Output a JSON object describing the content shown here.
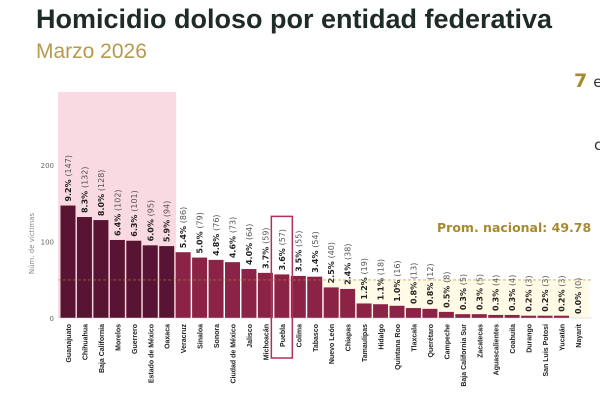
{
  "title": "Homicidio doloso por entidad federativa",
  "subtitle": "Marzo 2026",
  "side_text": {
    "number": "7",
    "text": "en",
    "fragment": "c"
  },
  "colors": {
    "top": "#5a1433",
    "rest": "#8b2346",
    "highlight_bg": "#f9d9e2",
    "below_avg_bg": "#fffbe6",
    "average": "#a88a2e",
    "puebla_box": "#b0305a"
  },
  "chart_data": {
    "type": "bar",
    "ylabel": "Núm. de víctimas",
    "ylim": [
      0,
      200
    ],
    "yticks": [
      0,
      100,
      200
    ],
    "average": {
      "label": "Prom. nacional: 49.78",
      "value": 49.78
    },
    "highlighted_category": "Puebla",
    "categories": [
      "Guanajuato",
      "Chihuahua",
      "Baja California",
      "Morelos",
      "Guerrero",
      "Estado de México",
      "Oaxaca",
      "Veracruz",
      "Sinaloa",
      "Sonora",
      "Ciudad de México",
      "Jalisco",
      "Michoacán",
      "Puebla",
      "Colima",
      "Tabasco",
      "Nuevo León",
      "Chiapas",
      "Tamaulipas",
      "Hidalgo",
      "Quintana Roo",
      "Tlaxcala",
      "Querétaro",
      "Campeche",
      "Baja California Sur",
      "Zacatecas",
      "Aguascalientes",
      "Coahuila",
      "Durango",
      "San Luis Potosí",
      "Yucatán",
      "Nayarit"
    ],
    "values": [
      147,
      132,
      128,
      102,
      101,
      95,
      94,
      86,
      79,
      76,
      73,
      64,
      59,
      57,
      55,
      54,
      40,
      38,
      19,
      18,
      16,
      13,
      12,
      8,
      5,
      5,
      4,
      4,
      3,
      3,
      3,
      0
    ],
    "percent_labels": [
      "9.2%",
      "8.3%",
      "8.0%",
      "6.4%",
      "6.3%",
      "6.0%",
      "5.9%",
      "5.4%",
      "5.0%",
      "4.8%",
      "4.6%",
      "4.0%",
      "3.7%",
      "3.6%",
      "3.5%",
      "3.4%",
      "2.5%",
      "2.4%",
      "1.2%",
      "1.1%",
      "1.0%",
      "0.8%",
      "0.8%",
      "0.5%",
      "0.3%",
      "0.3%",
      "0.3%",
      "0.3%",
      "0.2%",
      "0.2%",
      "0.2%",
      "0.0%"
    ],
    "top_group_count": 7
  }
}
